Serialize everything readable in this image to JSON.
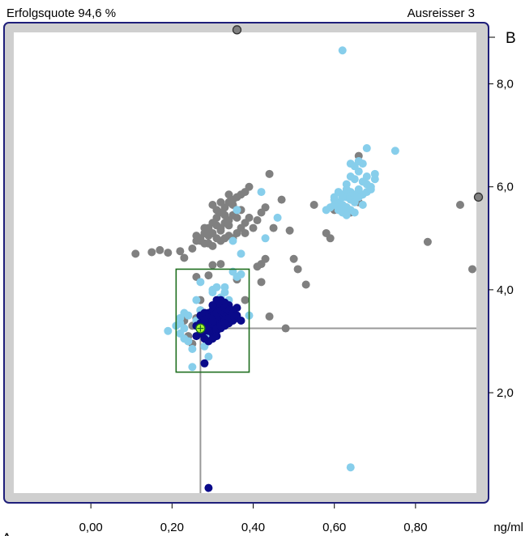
{
  "header": {
    "success_rate": "Erfolgsquote 94,6 %",
    "outliers": "Ausreisser 3"
  },
  "colors": {
    "frame_border": "#1f1f7a",
    "frame_fill": "#cfcfcf",
    "grey_points": "#808080",
    "light_blue_points": "#87ceeb",
    "dark_blue_points": "#0a0a8a",
    "target_box": "#1e6e1e",
    "crosshair": "#999999",
    "marker_fill": "#adff2f"
  },
  "chart_data": {
    "type": "scatter",
    "x_label": "ng/ml",
    "y_axis_letter": "B",
    "bottom_letter": "A",
    "xlim": [
      -0.19,
      0.95
    ],
    "ylim": [
      0.05,
      9.0
    ],
    "x_ticks": [
      "0,00",
      "0,20",
      "0,40",
      "0,60",
      "0,80"
    ],
    "x_tick_values": [
      0.0,
      0.2,
      0.4,
      0.6,
      0.8
    ],
    "y_ticks": [
      "2,0",
      "4,0",
      "6,0",
      "8,0"
    ],
    "y_tick_values": [
      2.0,
      4.0,
      6.0,
      8.0
    ],
    "target_box": {
      "x": [
        0.21,
        0.39
      ],
      "y": [
        2.4,
        4.4
      ]
    },
    "reference_point": {
      "x": 0.27,
      "y": 3.25
    },
    "outliers_on_frame": [
      {
        "x": 0.36,
        "y": 9.05
      },
      {
        "x": 0.955,
        "y": 5.8
      }
    ],
    "series": [
      {
        "color": "grey",
        "points": [
          [
            0.11,
            4.7
          ],
          [
            0.15,
            4.73
          ],
          [
            0.17,
            4.77
          ],
          [
            0.19,
            4.72
          ],
          [
            0.22,
            4.75
          ],
          [
            0.23,
            4.62
          ],
          [
            0.25,
            4.8
          ],
          [
            0.26,
            4.95
          ],
          [
            0.27,
            5.0
          ],
          [
            0.28,
            5.1
          ],
          [
            0.29,
            5.2
          ],
          [
            0.3,
            5.3
          ],
          [
            0.31,
            5.4
          ],
          [
            0.32,
            5.5
          ],
          [
            0.33,
            5.6
          ],
          [
            0.34,
            5.7
          ],
          [
            0.35,
            5.75
          ],
          [
            0.36,
            5.8
          ],
          [
            0.37,
            5.85
          ],
          [
            0.38,
            5.9
          ],
          [
            0.39,
            6.0
          ],
          [
            0.3,
            5.1
          ],
          [
            0.32,
            5.2
          ],
          [
            0.33,
            5.3
          ],
          [
            0.34,
            5.35
          ],
          [
            0.35,
            5.45
          ],
          [
            0.31,
            5.0
          ],
          [
            0.29,
            4.9
          ],
          [
            0.3,
            4.85
          ],
          [
            0.32,
            4.95
          ],
          [
            0.34,
            5.05
          ],
          [
            0.36,
            5.1
          ],
          [
            0.37,
            5.2
          ],
          [
            0.38,
            5.3
          ],
          [
            0.39,
            5.4
          ],
          [
            0.36,
            5.55
          ],
          [
            0.33,
            5.45
          ],
          [
            0.31,
            5.25
          ],
          [
            0.29,
            5.05
          ],
          [
            0.28,
            4.9
          ],
          [
            0.35,
            5.65
          ],
          [
            0.37,
            5.55
          ],
          [
            0.36,
            5.4
          ],
          [
            0.34,
            5.25
          ],
          [
            0.32,
            5.15
          ],
          [
            0.33,
            5.0
          ],
          [
            0.35,
            5.0
          ],
          [
            0.38,
            5.1
          ],
          [
            0.4,
            5.2
          ],
          [
            0.41,
            5.35
          ],
          [
            0.42,
            5.5
          ],
          [
            0.43,
            5.6
          ],
          [
            0.44,
            6.25
          ],
          [
            0.34,
            5.85
          ],
          [
            0.31,
            5.55
          ],
          [
            0.3,
            5.65
          ],
          [
            0.32,
            5.7
          ],
          [
            0.28,
            5.2
          ],
          [
            0.27,
            4.95
          ],
          [
            0.26,
            5.05
          ],
          [
            0.42,
            4.5
          ],
          [
            0.45,
            5.2
          ],
          [
            0.47,
            5.75
          ],
          [
            0.49,
            5.15
          ],
          [
            0.5,
            4.6
          ],
          [
            0.51,
            4.4
          ],
          [
            0.53,
            4.1
          ],
          [
            0.55,
            5.65
          ],
          [
            0.58,
            5.1
          ],
          [
            0.59,
            5.0
          ],
          [
            0.6,
            5.55
          ],
          [
            0.63,
            5.6
          ],
          [
            0.64,
            5.5
          ],
          [
            0.66,
            5.7
          ],
          [
            0.66,
            6.6
          ],
          [
            0.83,
            4.93
          ],
          [
            0.91,
            5.65
          ],
          [
            0.94,
            4.4
          ],
          [
            0.43,
            4.6
          ],
          [
            0.42,
            4.15
          ],
          [
            0.41,
            4.45
          ],
          [
            0.38,
            3.8
          ],
          [
            0.35,
            3.6
          ],
          [
            0.36,
            4.2
          ],
          [
            0.32,
            4.5
          ],
          [
            0.3,
            4.48
          ],
          [
            0.29,
            4.28
          ],
          [
            0.26,
            4.25
          ],
          [
            0.28,
            3.3
          ],
          [
            0.25,
            3.3
          ],
          [
            0.24,
            3.0
          ],
          [
            0.44,
            3.48
          ],
          [
            0.48,
            3.25
          ],
          [
            0.26,
            3.45
          ],
          [
            0.23,
            3.4
          ],
          [
            0.27,
            3.6
          ],
          [
            0.27,
            3.8
          ],
          [
            0.24,
            3.1
          ],
          [
            0.25,
            2.95
          ]
        ]
      },
      {
        "color": "light-blue",
        "points": [
          [
            0.62,
            8.65
          ],
          [
            0.75,
            6.7
          ],
          [
            0.68,
            6.75
          ],
          [
            0.65,
            6.4
          ],
          [
            0.66,
            6.3
          ],
          [
            0.67,
            6.45
          ],
          [
            0.64,
            6.2
          ],
          [
            0.65,
            6.15
          ],
          [
            0.63,
            6.05
          ],
          [
            0.67,
            6.1
          ],
          [
            0.68,
            6.2
          ],
          [
            0.69,
            6.0
          ],
          [
            0.7,
            6.15
          ],
          [
            0.64,
            6.45
          ],
          [
            0.66,
            6.5
          ],
          [
            0.61,
            5.9
          ],
          [
            0.62,
            5.85
          ],
          [
            0.63,
            5.8
          ],
          [
            0.64,
            5.75
          ],
          [
            0.65,
            5.7
          ],
          [
            0.66,
            5.8
          ],
          [
            0.67,
            5.85
          ],
          [
            0.68,
            5.9
          ],
          [
            0.69,
            5.95
          ],
          [
            0.6,
            5.75
          ],
          [
            0.61,
            5.7
          ],
          [
            0.62,
            5.65
          ],
          [
            0.63,
            5.6
          ],
          [
            0.64,
            5.55
          ],
          [
            0.65,
            5.5
          ],
          [
            0.59,
            5.6
          ],
          [
            0.6,
            5.65
          ],
          [
            0.61,
            5.55
          ],
          [
            0.62,
            5.5
          ],
          [
            0.63,
            5.45
          ],
          [
            0.58,
            5.55
          ],
          [
            0.62,
            5.8
          ],
          [
            0.64,
            5.9
          ],
          [
            0.66,
            5.95
          ],
          [
            0.68,
            6.05
          ],
          [
            0.67,
            5.65
          ],
          [
            0.65,
            5.85
          ],
          [
            0.63,
            5.95
          ],
          [
            0.6,
            5.8
          ],
          [
            0.7,
            6.25
          ],
          [
            0.42,
            5.9
          ],
          [
            0.36,
            5.55
          ],
          [
            0.46,
            5.4
          ],
          [
            0.43,
            5.0
          ],
          [
            0.35,
            4.95
          ],
          [
            0.37,
            4.7
          ],
          [
            0.39,
            3.5
          ],
          [
            0.35,
            4.35
          ],
          [
            0.37,
            4.3
          ],
          [
            0.36,
            4.25
          ],
          [
            0.34,
            3.8
          ],
          [
            0.33,
            3.95
          ],
          [
            0.31,
            4.05
          ],
          [
            0.3,
            4.0
          ],
          [
            0.27,
            4.15
          ],
          [
            0.26,
            3.8
          ],
          [
            0.27,
            3.6
          ],
          [
            0.23,
            3.55
          ],
          [
            0.22,
            3.45
          ],
          [
            0.21,
            3.3
          ],
          [
            0.19,
            3.2
          ],
          [
            0.22,
            3.15
          ],
          [
            0.23,
            3.05
          ],
          [
            0.24,
            3.0
          ],
          [
            0.25,
            2.85
          ],
          [
            0.23,
            3.25
          ],
          [
            0.22,
            3.35
          ],
          [
            0.24,
            3.5
          ],
          [
            0.27,
            3.2
          ],
          [
            0.29,
            3.1
          ],
          [
            0.26,
            3.4
          ],
          [
            0.28,
            2.9
          ],
          [
            0.29,
            2.7
          ],
          [
            0.25,
            2.5
          ],
          [
            0.64,
            0.55
          ],
          [
            0.3,
            3.95
          ],
          [
            0.32,
            3.85
          ],
          [
            0.33,
            4.05
          ]
        ]
      },
      {
        "color": "dark-blue",
        "points": [
          [
            0.29,
            0.15
          ],
          [
            0.28,
            2.57
          ],
          [
            0.26,
            3.1
          ],
          [
            0.27,
            3.15
          ],
          [
            0.28,
            3.2
          ],
          [
            0.29,
            3.25
          ],
          [
            0.3,
            3.3
          ],
          [
            0.31,
            3.35
          ],
          [
            0.32,
            3.4
          ],
          [
            0.33,
            3.45
          ],
          [
            0.34,
            3.5
          ],
          [
            0.35,
            3.6
          ],
          [
            0.36,
            3.65
          ],
          [
            0.3,
            3.15
          ],
          [
            0.31,
            3.2
          ],
          [
            0.32,
            3.25
          ],
          [
            0.33,
            3.3
          ],
          [
            0.34,
            3.35
          ],
          [
            0.28,
            3.35
          ],
          [
            0.29,
            3.4
          ],
          [
            0.3,
            3.45
          ],
          [
            0.31,
            3.5
          ],
          [
            0.32,
            3.55
          ],
          [
            0.33,
            3.6
          ],
          [
            0.34,
            3.7
          ],
          [
            0.29,
            3.55
          ],
          [
            0.3,
            3.6
          ],
          [
            0.31,
            3.65
          ],
          [
            0.32,
            3.7
          ],
          [
            0.33,
            3.75
          ],
          [
            0.27,
            3.35
          ],
          [
            0.28,
            3.05
          ],
          [
            0.29,
            3.0
          ],
          [
            0.3,
            3.05
          ],
          [
            0.31,
            3.1
          ],
          [
            0.35,
            3.4
          ],
          [
            0.36,
            3.45
          ],
          [
            0.31,
            3.8
          ],
          [
            0.32,
            3.8
          ],
          [
            0.3,
            3.5
          ],
          [
            0.29,
            3.3
          ],
          [
            0.33,
            3.55
          ],
          [
            0.34,
            3.55
          ],
          [
            0.26,
            3.3
          ],
          [
            0.27,
            3.5
          ],
          [
            0.28,
            3.55
          ],
          [
            0.3,
            3.7
          ],
          [
            0.31,
            3.45
          ],
          [
            0.32,
            3.35
          ],
          [
            0.33,
            3.4
          ],
          [
            0.34,
            3.45
          ],
          [
            0.35,
            3.5
          ],
          [
            0.28,
            3.25
          ],
          [
            0.29,
            3.45
          ],
          [
            0.3,
            3.35
          ],
          [
            0.31,
            3.25
          ],
          [
            0.32,
            3.3
          ],
          [
            0.33,
            3.35
          ],
          [
            0.27,
            3.25
          ],
          [
            0.28,
            3.4
          ],
          [
            0.29,
            3.2
          ],
          [
            0.3,
            3.4
          ],
          [
            0.31,
            3.55
          ],
          [
            0.32,
            3.6
          ],
          [
            0.33,
            3.65
          ],
          [
            0.34,
            3.6
          ],
          [
            0.35,
            3.55
          ],
          [
            0.36,
            3.5
          ],
          [
            0.37,
            3.4
          ]
        ]
      }
    ]
  }
}
